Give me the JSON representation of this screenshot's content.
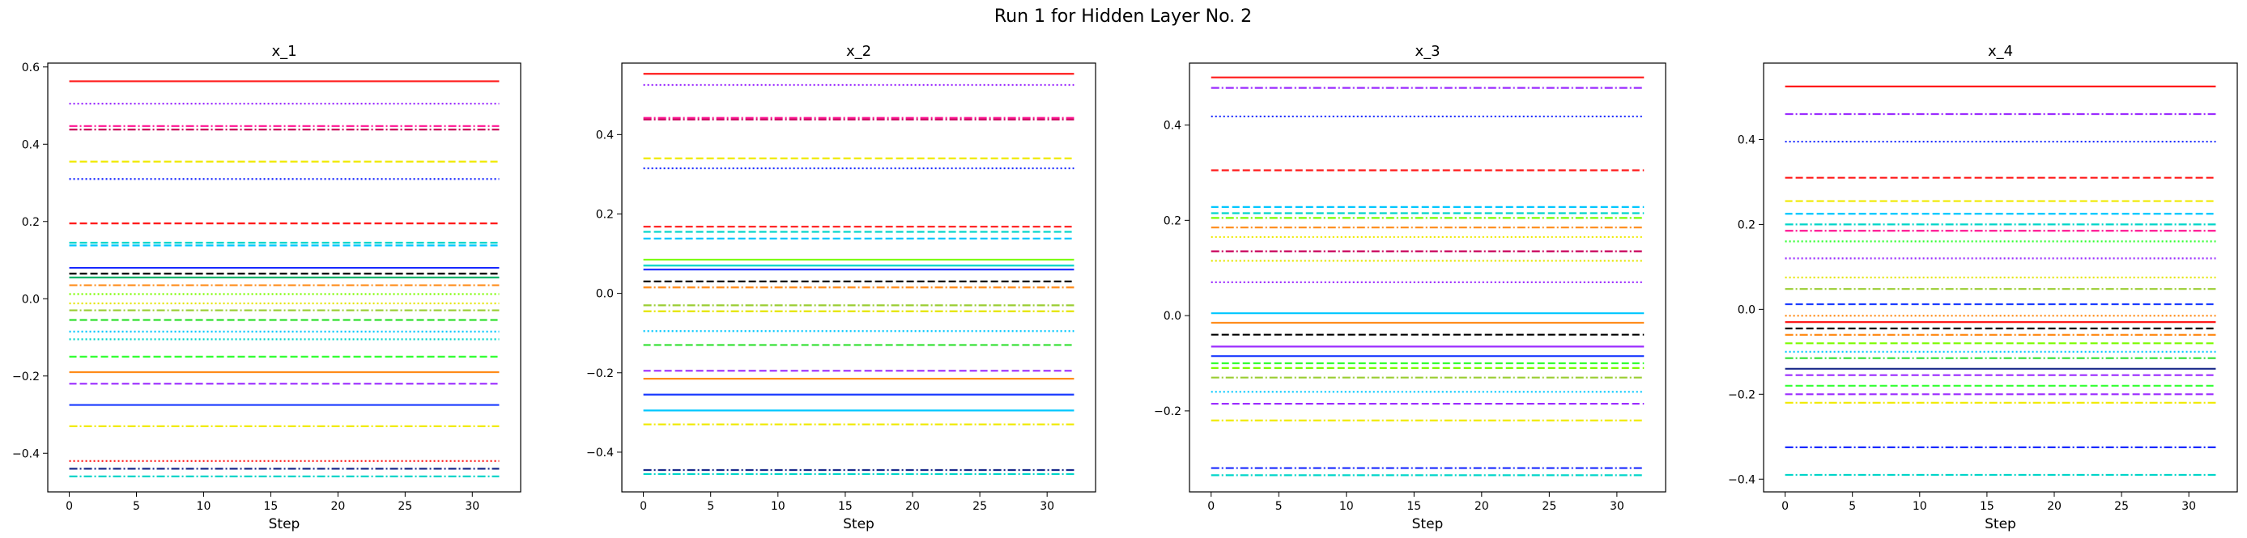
{
  "figure": {
    "suptitle": "Run 1 for Hidden Layer No. 2"
  },
  "chart_data": [
    {
      "type": "line",
      "title": "x_1",
      "xlabel": "Step",
      "ylabel": "",
      "x_range": [
        0,
        32
      ],
      "xlim": [
        -1.6,
        33.6
      ],
      "ylim": [
        -0.5,
        0.61
      ],
      "xticks": [
        0,
        5,
        10,
        15,
        20,
        25,
        30
      ],
      "yticks": [
        -0.4,
        -0.2,
        0.0,
        0.2,
        0.4,
        0.6
      ],
      "ytick_labels": [
        "−0.4",
        "−0.2",
        "0.0",
        "0.2",
        "0.4",
        "0.6"
      ],
      "grid": false,
      "series": [
        {
          "value": 0.563,
          "color": "#ff1a1a",
          "style": "solid"
        },
        {
          "value": 0.505,
          "color": "#9b2cff",
          "style": "dotted"
        },
        {
          "value": 0.447,
          "color": "#ff1493",
          "style": "dashdot"
        },
        {
          "value": 0.438,
          "color": "#c8005a",
          "style": "dashdot"
        },
        {
          "value": 0.355,
          "color": "#f0ea00",
          "style": "dashed"
        },
        {
          "value": 0.31,
          "color": "#1a2aff",
          "style": "dotted"
        },
        {
          "value": 0.195,
          "color": "#ff1a1a",
          "style": "dashed"
        },
        {
          "value": 0.145,
          "color": "#00d5c9",
          "style": "dashed"
        },
        {
          "value": 0.138,
          "color": "#00c7ff",
          "style": "dashed"
        },
        {
          "value": 0.08,
          "color": "#1a2aff",
          "style": "solid"
        },
        {
          "value": 0.065,
          "color": "#000000",
          "style": "dashed"
        },
        {
          "value": 0.055,
          "color": "#00b36b",
          "style": "solid"
        },
        {
          "value": 0.035,
          "color": "#ff8c1a",
          "style": "dashdot"
        },
        {
          "value": 0.012,
          "color": "#7cfc00",
          "style": "dotted"
        },
        {
          "value": -0.012,
          "color": "#e5e500",
          "style": "dotted"
        },
        {
          "value": -0.03,
          "color": "#9acd32",
          "style": "dashdot"
        },
        {
          "value": -0.055,
          "color": "#32e032",
          "style": "dashed"
        },
        {
          "value": -0.085,
          "color": "#00c7ff",
          "style": "dotted"
        },
        {
          "value": -0.105,
          "color": "#00d5c9",
          "style": "dotted"
        },
        {
          "value": -0.15,
          "color": "#32ff32",
          "style": "dashed"
        },
        {
          "value": -0.19,
          "color": "#ff8c1a",
          "style": "solid"
        },
        {
          "value": -0.22,
          "color": "#9b2cff",
          "style": "dashed"
        },
        {
          "value": -0.275,
          "color": "#1a3aff",
          "style": "solid"
        },
        {
          "value": -0.33,
          "color": "#f0ea00",
          "style": "dashdot"
        },
        {
          "value": -0.42,
          "color": "#ff1a1a",
          "style": "dotted"
        },
        {
          "value": -0.44,
          "color": "#1a2a8a",
          "style": "dashdot"
        },
        {
          "value": -0.46,
          "color": "#00d5c9",
          "style": "dashdot"
        }
      ]
    },
    {
      "type": "line",
      "title": "x_2",
      "xlabel": "Step",
      "ylabel": "",
      "x_range": [
        0,
        32
      ],
      "xlim": [
        -1.6,
        33.6
      ],
      "ylim": [
        -0.5,
        0.58
      ],
      "xticks": [
        0,
        5,
        10,
        15,
        20,
        25,
        30
      ],
      "yticks": [
        -0.4,
        -0.2,
        0.0,
        0.2,
        0.4
      ],
      "ytick_labels": [
        "−0.4",
        "−0.2",
        "0.0",
        "0.2",
        "0.4"
      ],
      "grid": false,
      "series": [
        {
          "value": 0.553,
          "color": "#ff1a1a",
          "style": "solid"
        },
        {
          "value": 0.525,
          "color": "#9b2cff",
          "style": "dotted"
        },
        {
          "value": 0.442,
          "color": "#ff1493",
          "style": "dashdot"
        },
        {
          "value": 0.438,
          "color": "#c8005a",
          "style": "dashdot"
        },
        {
          "value": 0.34,
          "color": "#f0ea00",
          "style": "dashed"
        },
        {
          "value": 0.315,
          "color": "#1a2aff",
          "style": "dotted"
        },
        {
          "value": 0.168,
          "color": "#ff1a1a",
          "style": "dashed"
        },
        {
          "value": 0.155,
          "color": "#00d5c9",
          "style": "dashed"
        },
        {
          "value": 0.138,
          "color": "#00c7ff",
          "style": "dashed"
        },
        {
          "value": 0.085,
          "color": "#7cfc00",
          "style": "solid"
        },
        {
          "value": 0.07,
          "color": "#00d5c9",
          "style": "solid"
        },
        {
          "value": 0.06,
          "color": "#1a2aff",
          "style": "solid"
        },
        {
          "value": 0.03,
          "color": "#000000",
          "style": "dashed"
        },
        {
          "value": 0.015,
          "color": "#ff8c1a",
          "style": "dashdot"
        },
        {
          "value": -0.03,
          "color": "#9acd32",
          "style": "dashdot"
        },
        {
          "value": -0.045,
          "color": "#e5e500",
          "style": "dashdot"
        },
        {
          "value": -0.095,
          "color": "#00c7ff",
          "style": "dotted"
        },
        {
          "value": -0.13,
          "color": "#32e032",
          "style": "dashed"
        },
        {
          "value": -0.195,
          "color": "#9b2cff",
          "style": "dashed"
        },
        {
          "value": -0.215,
          "color": "#ff8c1a",
          "style": "solid"
        },
        {
          "value": -0.255,
          "color": "#1a3aff",
          "style": "solid"
        },
        {
          "value": -0.295,
          "color": "#00c7ff",
          "style": "solid"
        },
        {
          "value": -0.33,
          "color": "#f0ea00",
          "style": "dashdot"
        },
        {
          "value": -0.445,
          "color": "#1a2a8a",
          "style": "dashdot"
        },
        {
          "value": -0.455,
          "color": "#00d5c9",
          "style": "dashdot"
        }
      ]
    },
    {
      "type": "line",
      "title": "x_3",
      "xlabel": "Step",
      "ylabel": "",
      "x_range": [
        0,
        32
      ],
      "xlim": [
        -1.6,
        33.6
      ],
      "ylim": [
        -0.37,
        0.53
      ],
      "xticks": [
        0,
        5,
        10,
        15,
        20,
        25,
        30
      ],
      "yticks": [
        -0.2,
        0.0,
        0.2,
        0.4
      ],
      "ytick_labels": [
        "−0.2",
        "0.0",
        "0.2",
        "0.4"
      ],
      "grid": false,
      "series": [
        {
          "value": 0.5,
          "color": "#ff1a1a",
          "style": "solid"
        },
        {
          "value": 0.478,
          "color": "#9b2cff",
          "style": "dashdot"
        },
        {
          "value": 0.418,
          "color": "#1a2aff",
          "style": "dotted"
        },
        {
          "value": 0.305,
          "color": "#ff1a1a",
          "style": "dashed"
        },
        {
          "value": 0.228,
          "color": "#00c7ff",
          "style": "dashed"
        },
        {
          "value": 0.215,
          "color": "#00d5c9",
          "style": "dashed"
        },
        {
          "value": 0.205,
          "color": "#7cfc00",
          "style": "dashdot"
        },
        {
          "value": 0.185,
          "color": "#ff8c1a",
          "style": "dashdot"
        },
        {
          "value": 0.165,
          "color": "#f0ea00",
          "style": "dotted"
        },
        {
          "value": 0.135,
          "color": "#c8005a",
          "style": "dashdot"
        },
        {
          "value": 0.115,
          "color": "#e5e500",
          "style": "dotted"
        },
        {
          "value": 0.07,
          "color": "#9b2cff",
          "style": "dotted"
        },
        {
          "value": 0.005,
          "color": "#00c7ff",
          "style": "solid"
        },
        {
          "value": -0.015,
          "color": "#ff8c1a",
          "style": "solid"
        },
        {
          "value": -0.04,
          "color": "#000000",
          "style": "dashed"
        },
        {
          "value": -0.065,
          "color": "#9b2cff",
          "style": "solid"
        },
        {
          "value": -0.085,
          "color": "#1a3aff",
          "style": "solid"
        },
        {
          "value": -0.1,
          "color": "#32ff32",
          "style": "dashed"
        },
        {
          "value": -0.11,
          "color": "#7cfc00",
          "style": "dashed"
        },
        {
          "value": -0.13,
          "color": "#9acd32",
          "style": "dashdot"
        },
        {
          "value": -0.16,
          "color": "#00c7ff",
          "style": "dotted"
        },
        {
          "value": -0.185,
          "color": "#9b2cff",
          "style": "dashed"
        },
        {
          "value": -0.22,
          "color": "#f0ea00",
          "style": "dashdot"
        },
        {
          "value": -0.32,
          "color": "#1a2aff",
          "style": "dashdot"
        },
        {
          "value": -0.335,
          "color": "#00d5c9",
          "style": "dashdot"
        }
      ]
    },
    {
      "type": "line",
      "title": "x_4",
      "xlabel": "Step",
      "ylabel": "",
      "x_range": [
        0,
        32
      ],
      "xlim": [
        -1.6,
        33.6
      ],
      "ylim": [
        -0.43,
        0.58
      ],
      "xticks": [
        0,
        5,
        10,
        15,
        20,
        25,
        30
      ],
      "yticks": [
        -0.4,
        -0.2,
        0.0,
        0.2,
        0.4
      ],
      "ytick_labels": [
        "−0.4",
        "−0.2",
        "0.0",
        "0.2",
        "0.4"
      ],
      "grid": false,
      "series": [
        {
          "value": 0.525,
          "color": "#ff1a1a",
          "style": "solid"
        },
        {
          "value": 0.46,
          "color": "#9b2cff",
          "style": "dashdot"
        },
        {
          "value": 0.395,
          "color": "#1a2aff",
          "style": "dotted"
        },
        {
          "value": 0.31,
          "color": "#ff1a1a",
          "style": "dashed"
        },
        {
          "value": 0.255,
          "color": "#f0ea00",
          "style": "dashed"
        },
        {
          "value": 0.225,
          "color": "#00c7ff",
          "style": "dashed"
        },
        {
          "value": 0.2,
          "color": "#00d5c9",
          "style": "dashdot"
        },
        {
          "value": 0.185,
          "color": "#ff1493",
          "style": "dashdot"
        },
        {
          "value": 0.16,
          "color": "#32ff32",
          "style": "dotted"
        },
        {
          "value": 0.12,
          "color": "#9b2cff",
          "style": "dotted"
        },
        {
          "value": 0.075,
          "color": "#e5e500",
          "style": "dotted"
        },
        {
          "value": 0.048,
          "color": "#9acd32",
          "style": "dashdot"
        },
        {
          "value": 0.012,
          "color": "#1a3aff",
          "style": "dashed"
        },
        {
          "value": -0.015,
          "color": "#ff8c1a",
          "style": "dotted"
        },
        {
          "value": -0.03,
          "color": "#ff1a1a",
          "style": "solid"
        },
        {
          "value": -0.045,
          "color": "#000000",
          "style": "dashed"
        },
        {
          "value": -0.06,
          "color": "#ff8c1a",
          "style": "dashdot"
        },
        {
          "value": -0.08,
          "color": "#7cfc00",
          "style": "dashed"
        },
        {
          "value": -0.1,
          "color": "#00c7ff",
          "style": "dotted"
        },
        {
          "value": -0.115,
          "color": "#32e032",
          "style": "dashdot"
        },
        {
          "value": -0.14,
          "color": "#1a2a8a",
          "style": "solid"
        },
        {
          "value": -0.155,
          "color": "#9b2cff",
          "style": "dashed"
        },
        {
          "value": -0.18,
          "color": "#32ff32",
          "style": "dashed"
        },
        {
          "value": -0.2,
          "color": "#9b2cff",
          "style": "dashed"
        },
        {
          "value": -0.22,
          "color": "#f0ea00",
          "style": "dashdot"
        },
        {
          "value": -0.325,
          "color": "#1a2aff",
          "style": "dashdot"
        },
        {
          "value": -0.39,
          "color": "#00d5c9",
          "style": "dashdot"
        }
      ]
    }
  ]
}
